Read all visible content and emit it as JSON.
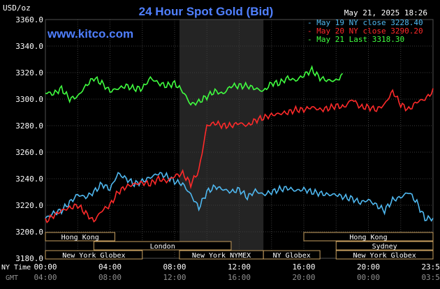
{
  "header": {
    "title": "24 Hour Spot Gold (Bid)",
    "timestamp": "May 21, 2025 18:26",
    "unit": "USD/oz",
    "website": "www.kitco.com"
  },
  "legend": [
    {
      "label": "May 19 NY close 3228.40",
      "color": "#4fb8f0"
    },
    {
      "label": "May 20 NY close 3290.20",
      "color": "#ff2a2a"
    },
    {
      "label": "May 21 Last 3318.30",
      "color": "#40ff40"
    }
  ],
  "axis": {
    "ny_time_label": "NY Time",
    "gmt_label": "GMT",
    "ny_ticks": [
      "00:00",
      "04:00",
      "08:00",
      "12:00",
      "16:00",
      "20:00",
      "23:59"
    ],
    "gmt_ticks": [
      "04:00",
      "08:00",
      "12:00",
      "16:00",
      "20:00",
      "00:00",
      "03:59"
    ]
  },
  "sessions": [
    {
      "label": "Hong Kong",
      "row": 0,
      "start_hour": 0.0,
      "end_hour": 4.3
    },
    {
      "label": "Hong Kong",
      "row": 0,
      "start_hour": 16.0,
      "end_hour": 24.0
    },
    {
      "label": "London",
      "row": 1,
      "start_hour": 3.0,
      "end_hour": 11.5
    },
    {
      "label": "Sydney",
      "row": 1,
      "start_hour": 18.0,
      "end_hour": 24.0
    },
    {
      "label": "New York Globex",
      "row": 2,
      "start_hour": 0.0,
      "end_hour": 6.0
    },
    {
      "label": "New York NYMEX",
      "row": 2,
      "start_hour": 8.3,
      "end_hour": 13.5
    },
    {
      "label": "NY Globex",
      "row": 2,
      "start_hour": 13.5,
      "end_hour": 17.0
    },
    {
      "label": "New York Globex",
      "row": 2,
      "start_hour": 18.0,
      "end_hour": 24.0
    }
  ],
  "chart_data": {
    "type": "line",
    "title": "24 Hour Spot Gold (Bid)",
    "ylabel": "USD/oz",
    "xlabel": "NY Time",
    "ylim": [
      3180,
      3360
    ],
    "xlim": [
      0,
      24
    ],
    "yticks": [
      "3360.0",
      "3340.0",
      "3320.0",
      "3300.0",
      "3280.0",
      "3260.0",
      "3240.0",
      "3220.0",
      "3200.0",
      "3180.0"
    ],
    "grid": true,
    "legend_position": "top-right",
    "highlight_band": [
      8.3,
      13.5
    ],
    "series": [
      {
        "name": "May 19",
        "color": "#4fb8f0",
        "x": [
          0,
          0.5,
          1,
          1.5,
          2,
          2.5,
          3,
          3.5,
          4,
          4.5,
          5,
          5.5,
          6,
          6.5,
          7,
          7.5,
          8,
          8.5,
          9,
          9.5,
          10,
          10.5,
          11,
          11.5,
          12,
          12.5,
          13,
          13.5,
          14,
          14.5,
          15,
          15.5,
          16,
          16.5,
          17,
          17.5,
          18,
          18.5,
          19,
          19.5,
          20,
          20.5,
          21,
          21.5,
          22,
          22.5,
          23,
          23.5,
          24
        ],
        "y": [
          3210,
          3214,
          3216,
          3222,
          3228,
          3226,
          3230,
          3236,
          3232,
          3244,
          3240,
          3236,
          3238,
          3241,
          3244,
          3242,
          3238,
          3236,
          3228,
          3218,
          3230,
          3234,
          3232,
          3230,
          3232,
          3226,
          3231,
          3228,
          3230,
          3232,
          3233,
          3231,
          3232,
          3230,
          3229,
          3228,
          3228,
          3226,
          3225,
          3222,
          3224,
          3220,
          3216,
          3224,
          3226,
          3230,
          3222,
          3210,
          3210
        ]
      },
      {
        "name": "May 20",
        "color": "#ff2a2a",
        "x": [
          0,
          0.5,
          1,
          1.5,
          2,
          2.5,
          3,
          3.5,
          4,
          4.5,
          5,
          5.5,
          6,
          6.5,
          7,
          7.5,
          8,
          8.5,
          9,
          9.5,
          10,
          10.5,
          11,
          11.5,
          12,
          12.5,
          13,
          13.5,
          14,
          14.5,
          15,
          15.5,
          16,
          16.5,
          17,
          17.5,
          18,
          18.5,
          19,
          19.5,
          20,
          20.5,
          21,
          21.5,
          22,
          22.5,
          23,
          23.5,
          24
        ],
        "y": [
          3208,
          3212,
          3216,
          3218,
          3220,
          3214,
          3208,
          3216,
          3220,
          3230,
          3234,
          3236,
          3237,
          3236,
          3240,
          3238,
          3242,
          3244,
          3236,
          3246,
          3280,
          3282,
          3280,
          3280,
          3282,
          3280,
          3284,
          3286,
          3288,
          3289,
          3290,
          3292,
          3292,
          3294,
          3292,
          3293,
          3295,
          3294,
          3300,
          3294,
          3294,
          3292,
          3296,
          3306,
          3296,
          3292,
          3298,
          3300,
          3306
        ]
      },
      {
        "name": "May 21",
        "color": "#40ff40",
        "x": [
          0,
          0.5,
          1,
          1.5,
          2,
          2.5,
          3,
          3.5,
          4,
          4.5,
          5,
          5.5,
          6,
          6.5,
          7,
          7.5,
          8,
          8.5,
          9,
          9.5,
          10,
          10.5,
          11,
          11.5,
          12,
          12.5,
          13,
          13.5,
          14,
          14.5,
          15,
          15.5,
          16,
          16.5,
          17,
          17.5,
          18,
          18.43
        ],
        "y": [
          3305,
          3304,
          3308,
          3300,
          3302,
          3310,
          3316,
          3312,
          3306,
          3308,
          3310,
          3308,
          3308,
          3316,
          3312,
          3310,
          3312,
          3306,
          3296,
          3298,
          3302,
          3306,
          3304,
          3310,
          3310,
          3310,
          3308,
          3306,
          3312,
          3312,
          3316,
          3314,
          3318,
          3322,
          3316,
          3314,
          3314,
          3318.3
        ]
      }
    ]
  }
}
